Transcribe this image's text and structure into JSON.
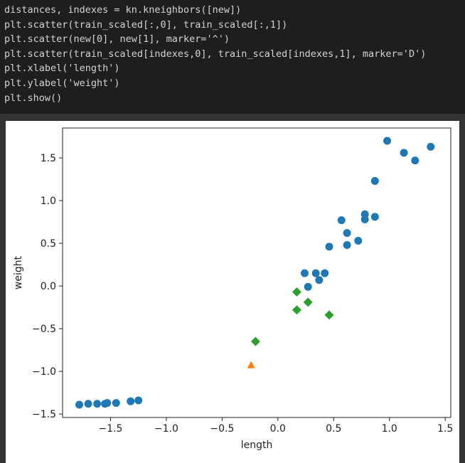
{
  "code": {
    "lines": [
      "distances, indexes = kn.kneighbors([new])",
      "plt.scatter(train_scaled[:,0], train_scaled[:,1])",
      "plt.scatter(new[0], new[1], marker='^')",
      "plt.scatter(train_scaled[indexes,0], train_scaled[indexes,1], marker='D')",
      "plt.xlabel('length')",
      "plt.ylabel('weight')",
      "plt.show()"
    ]
  },
  "chart_data": {
    "type": "scatter",
    "x_label": "length",
    "y_label": "weight",
    "xlim": [
      -1.93,
      1.55
    ],
    "ylim": [
      -1.54,
      1.85
    ],
    "xticks": [
      {
        "value": -1.5,
        "label": "−1.5"
      },
      {
        "value": -1.0,
        "label": "−1.0"
      },
      {
        "value": -0.5,
        "label": "−0.5"
      },
      {
        "value": 0.0,
        "label": "0.0"
      },
      0.5,
      {
        "value": 1.0,
        "label": "1.0"
      },
      1.5
    ],
    "yticks": [
      {
        "value": -1.5,
        "label": "−1.5"
      },
      {
        "value": -1.0,
        "label": "−1.0"
      },
      {
        "value": -0.5,
        "label": "−0.5"
      },
      {
        "value": 0.0,
        "label": "0.0"
      },
      0.5,
      {
        "value": 1.0,
        "label": "1.0"
      },
      1.5
    ],
    "grid": false,
    "series": [
      {
        "color": "#1f77b4",
        "marker": "o",
        "x": [
          -1.78,
          -1.7,
          -1.62,
          -1.55,
          -1.53,
          -1.45,
          -1.32,
          -1.25,
          0.24,
          0.27,
          0.34,
          0.37,
          0.42,
          0.46,
          0.57,
          0.62,
          0.62,
          0.72,
          0.78,
          0.78,
          0.87,
          0.87,
          0.98,
          1.13,
          1.23,
          1.37
        ],
        "values": [
          -1.39,
          -1.38,
          -1.38,
          -1.38,
          -1.37,
          -1.37,
          -1.35,
          -1.34,
          0.15,
          -0.01,
          0.15,
          0.07,
          0.15,
          0.46,
          0.77,
          0.62,
          0.48,
          0.53,
          0.84,
          0.78,
          0.81,
          1.23,
          1.7,
          1.56,
          1.47,
          1.63
        ]
      },
      {
        "color": "#ff7f0e",
        "marker": "^",
        "x": [
          -0.24
        ],
        "values": [
          -0.93
        ]
      },
      {
        "color": "#2ca02c",
        "marker": "D",
        "x": [
          0.17,
          0.17,
          0.27,
          0.46,
          -0.2
        ],
        "values": [
          -0.07,
          -0.28,
          -0.19,
          -0.34,
          -0.65
        ]
      }
    ]
  }
}
